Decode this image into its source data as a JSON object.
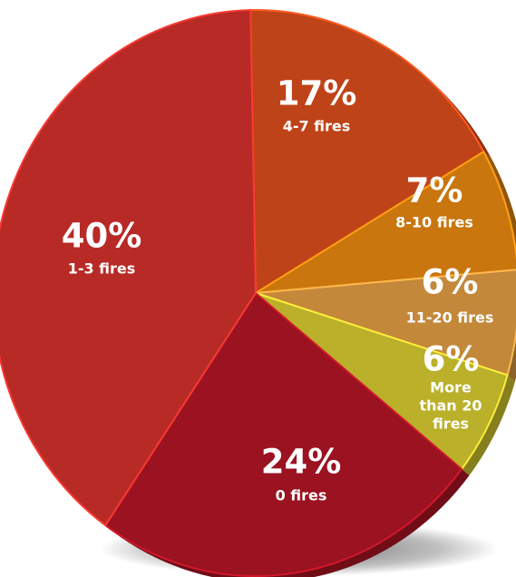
{
  "chart_data": {
    "type": "pie",
    "title": "",
    "slices": [
      {
        "pct_label": "17%",
        "label": "4-7 fires",
        "value": 17,
        "color": "#BF4318"
      },
      {
        "pct_label": "7%",
        "label": "8-10 fires",
        "value": 7,
        "color": "#C9760E"
      },
      {
        "pct_label": "6%",
        "label": "11-20 fires",
        "value": 6,
        "color": "#C3883A"
      },
      {
        "pct_label": "6%",
        "label": "More than 20 fires",
        "value": 6,
        "color": "#BAB02A"
      },
      {
        "pct_label": "24%",
        "label": "0 fires",
        "value": 24,
        "color": "#9B1220"
      },
      {
        "pct_label": "40%",
        "label": "1-3 fires",
        "value": 40,
        "color": "#B82A26"
      }
    ]
  }
}
